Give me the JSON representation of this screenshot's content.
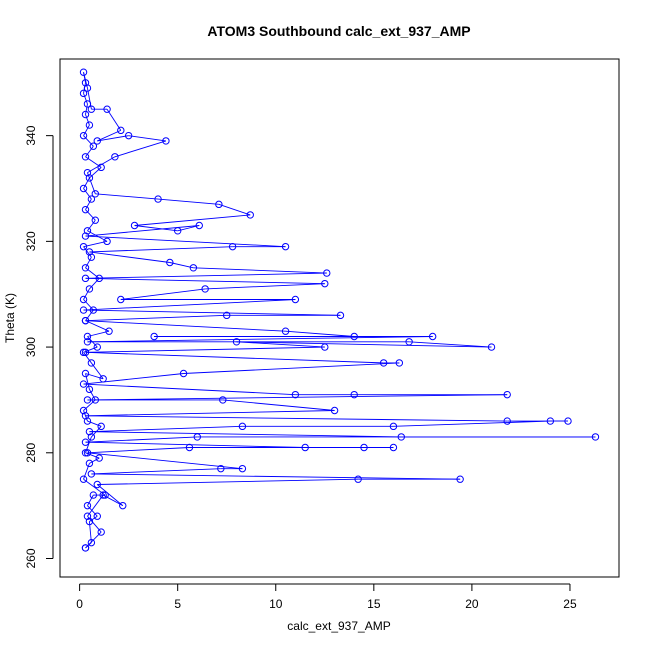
{
  "chart_data": {
    "type": "line",
    "title": "ATOM3 Southbound calc_ext_937_AMP",
    "xlabel": "calc_ext_937_AMP",
    "ylabel": "Theta (K)",
    "xlim": [
      -1.0,
      27.5
    ],
    "ylim": [
      256.5,
      354.5
    ],
    "x_ticks": [
      0,
      5,
      10,
      15,
      20,
      25
    ],
    "y_ticks": [
      260,
      280,
      300,
      320,
      340
    ],
    "grid": false,
    "legend": "none",
    "marker": "open-circle",
    "line_color": "#0000ff",
    "series": [
      {
        "points": [
          [
            0.3,
            262
          ],
          [
            0.6,
            263
          ],
          [
            0.5,
            267
          ],
          [
            0.9,
            268
          ],
          [
            0.4,
            270
          ],
          [
            0.7,
            272
          ],
          [
            1.3,
            272
          ],
          [
            0.2,
            275
          ],
          [
            0.5,
            278
          ],
          [
            1.0,
            279
          ],
          [
            0.3,
            280
          ],
          [
            0.6,
            283
          ],
          [
            1.1,
            285
          ],
          [
            0.4,
            286
          ],
          [
            0.2,
            288
          ],
          [
            0.8,
            290
          ],
          [
            0.5,
            292
          ],
          [
            0.3,
            295
          ],
          [
            1.2,
            294
          ],
          [
            0.6,
            297
          ],
          [
            0.2,
            299
          ],
          [
            0.9,
            300
          ],
          [
            0.4,
            302
          ],
          [
            1.5,
            303
          ],
          [
            0.3,
            305
          ],
          [
            0.7,
            307
          ],
          [
            0.2,
            309
          ],
          [
            0.5,
            311
          ],
          [
            1.0,
            313
          ],
          [
            0.3,
            315
          ],
          [
            0.6,
            317
          ],
          [
            0.2,
            319
          ],
          [
            1.4,
            320
          ],
          [
            0.4,
            322
          ],
          [
            0.8,
            324
          ],
          [
            0.3,
            326
          ],
          [
            0.6,
            328
          ],
          [
            0.2,
            330
          ],
          [
            0.5,
            332
          ],
          [
            1.1,
            334
          ],
          [
            0.3,
            336
          ],
          [
            0.7,
            338
          ],
          [
            0.2,
            340
          ],
          [
            0.5,
            342
          ],
          [
            0.3,
            344
          ],
          [
            0.4,
            346
          ],
          [
            0.2,
            348
          ],
          [
            0.3,
            350
          ],
          [
            0.2,
            352
          ],
          [
            0.4,
            349
          ],
          [
            0.6,
            345
          ],
          [
            1.4,
            345
          ],
          [
            2.1,
            341
          ],
          [
            0.9,
            339
          ],
          [
            2.5,
            340
          ],
          [
            4.4,
            339
          ],
          [
            1.8,
            336
          ],
          [
            0.4,
            333
          ],
          [
            0.8,
            329
          ],
          [
            4.0,
            328
          ],
          [
            7.1,
            327
          ],
          [
            8.7,
            325
          ],
          [
            2.8,
            323
          ],
          [
            5.0,
            322
          ],
          [
            6.1,
            323
          ],
          [
            0.3,
            321
          ],
          [
            10.5,
            319
          ],
          [
            7.8,
            319
          ],
          [
            0.5,
            318
          ],
          [
            4.6,
            316
          ],
          [
            5.8,
            315
          ],
          [
            12.6,
            314
          ],
          [
            0.3,
            313
          ],
          [
            12.5,
            312
          ],
          [
            6.4,
            311
          ],
          [
            2.1,
            309
          ],
          [
            11.0,
            309
          ],
          [
            0.2,
            307
          ],
          [
            13.3,
            306
          ],
          [
            7.5,
            306
          ],
          [
            0.3,
            305
          ],
          [
            10.5,
            303
          ],
          [
            14.0,
            302
          ],
          [
            3.8,
            302
          ],
          [
            18.0,
            302
          ],
          [
            0.4,
            301
          ],
          [
            16.8,
            301
          ],
          [
            21.0,
            300
          ],
          [
            8.0,
            301
          ],
          [
            12.5,
            300
          ],
          [
            0.3,
            299
          ],
          [
            15.5,
            297
          ],
          [
            16.3,
            297
          ],
          [
            5.3,
            295
          ],
          [
            0.2,
            293
          ],
          [
            11.0,
            291
          ],
          [
            14.0,
            291
          ],
          [
            21.8,
            291
          ],
          [
            0.4,
            290
          ],
          [
            7.3,
            290
          ],
          [
            13.0,
            288
          ],
          [
            0.3,
            287
          ],
          [
            21.8,
            286
          ],
          [
            24.9,
            286
          ],
          [
            24.0,
            286
          ],
          [
            16.0,
            285
          ],
          [
            8.3,
            285
          ],
          [
            0.5,
            284
          ],
          [
            16.4,
            283
          ],
          [
            26.3,
            283
          ],
          [
            6.0,
            283
          ],
          [
            0.3,
            282
          ],
          [
            11.5,
            281
          ],
          [
            14.5,
            281
          ],
          [
            16.0,
            281
          ],
          [
            5.6,
            281
          ],
          [
            0.4,
            280
          ],
          [
            8.3,
            277
          ],
          [
            7.2,
            277
          ],
          [
            0.6,
            276
          ],
          [
            19.4,
            275
          ],
          [
            14.2,
            275
          ],
          [
            0.9,
            274
          ],
          [
            2.2,
            270
          ],
          [
            1.2,
            272
          ],
          [
            0.4,
            268
          ],
          [
            1.1,
            265
          ],
          [
            0.3,
            262
          ]
        ]
      }
    ]
  }
}
